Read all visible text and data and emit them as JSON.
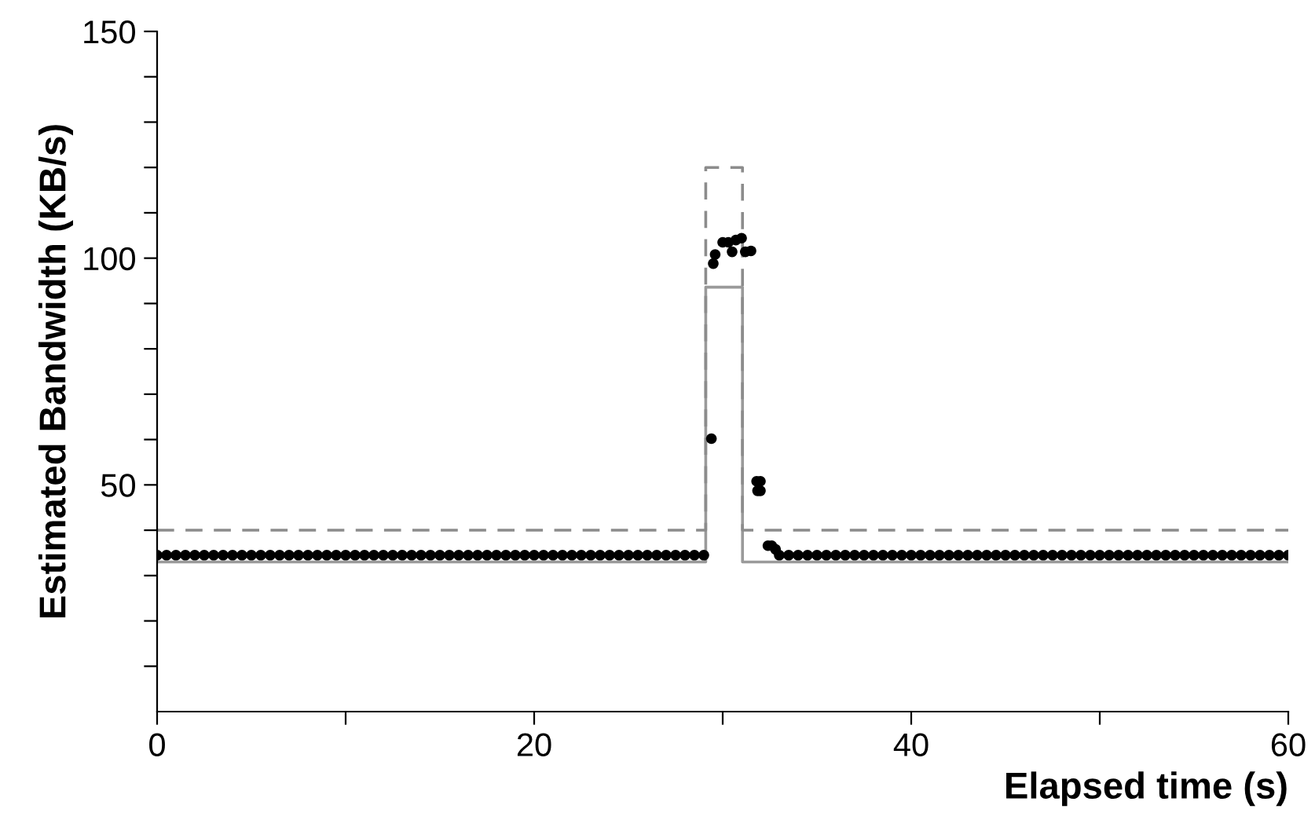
{
  "chart_data": {
    "type": "scatter",
    "xlabel": "Elapsed time (s)",
    "ylabel": "Estimated Bandwidth (KB/s)",
    "xlim": [
      0,
      60
    ],
    "ylim": [
      0,
      150
    ],
    "xticks": [
      0,
      {
        "value": 10,
        "label": null
      },
      20,
      {
        "value": 30,
        "label": null
      },
      40,
      {
        "value": 50,
        "label": null
      },
      60
    ],
    "yticks": [
      {
        "value": 10,
        "label": null
      },
      {
        "value": 20,
        "label": null
      },
      {
        "value": 30,
        "label": null
      },
      {
        "value": 40,
        "label": null
      },
      50,
      {
        "value": 60,
        "label": null
      },
      {
        "value": 70,
        "label": null
      },
      {
        "value": 80,
        "label": null
      },
      {
        "value": 90,
        "label": null
      },
      100,
      {
        "value": 110,
        "label": null
      },
      {
        "value": 120,
        "label": null
      },
      {
        "value": 130,
        "label": null
      },
      {
        "value": 140,
        "label": null
      },
      150
    ],
    "grid": false,
    "legend": false,
    "series": [
      {
        "type": "line",
        "line_style": "solid",
        "color": "#9a9a9a",
        "x": [
          0,
          29.1,
          29.1,
          31.05,
          31.05,
          60
        ],
        "values": [
          33,
          33,
          93.6,
          93.6,
          33,
          33
        ]
      },
      {
        "type": "line",
        "line_style": "dashed",
        "color": "#8c8c8c",
        "x": [
          0,
          29.1,
          29.1,
          31.05,
          31.05,
          60
        ],
        "values": [
          40,
          40,
          120,
          120,
          40,
          40
        ]
      },
      {
        "marker": "circle",
        "color": "#000000",
        "x": [
          0,
          0.5,
          1,
          1.5,
          2,
          2.5,
          3,
          3.5,
          4,
          4.5,
          5,
          5.5,
          6,
          6.5,
          7,
          7.5,
          8,
          8.5,
          9,
          9.5,
          10,
          10.5,
          11,
          11.5,
          12,
          12.5,
          13,
          13.5,
          14,
          14.5,
          15,
          15.5,
          16,
          16.5,
          17,
          17.5,
          18,
          18.5,
          19,
          19.5,
          20,
          20.5,
          21,
          21.5,
          22,
          22.5,
          23,
          23.5,
          24,
          24.5,
          25,
          25.5,
          26,
          26.5,
          27,
          27.5,
          28,
          28.5,
          29,
          29.4,
          29.5,
          29.6,
          30.0,
          30.3,
          30.5,
          30.7,
          31.0,
          31.2,
          31.5,
          31.8,
          31.85,
          32.0,
          32.0,
          32.4,
          32.6,
          32.8,
          33,
          33.5,
          34,
          34.5,
          35,
          35.5,
          36,
          36.5,
          37,
          37.5,
          38,
          38.5,
          39,
          39.5,
          40,
          40.5,
          41,
          41.5,
          42,
          42.5,
          43,
          43.5,
          44,
          44.5,
          45,
          45.5,
          46,
          46.5,
          47,
          47.5,
          48,
          48.5,
          49,
          49.5,
          50,
          50.5,
          51,
          51.5,
          52,
          52.5,
          53,
          53.5,
          54,
          54.5,
          55,
          55.5,
          56,
          56.5,
          57,
          57.5,
          58,
          58.5,
          59,
          59.5,
          60
        ],
        "values": [
          34.5,
          34.5,
          34.5,
          34.5,
          34.5,
          34.5,
          34.5,
          34.5,
          34.5,
          34.5,
          34.5,
          34.5,
          34.5,
          34.5,
          34.5,
          34.5,
          34.5,
          34.5,
          34.5,
          34.5,
          34.5,
          34.5,
          34.5,
          34.5,
          34.5,
          34.5,
          34.5,
          34.5,
          34.5,
          34.5,
          34.5,
          34.5,
          34.5,
          34.5,
          34.5,
          34.5,
          34.5,
          34.5,
          34.5,
          34.5,
          34.5,
          34.5,
          34.5,
          34.5,
          34.5,
          34.5,
          34.5,
          34.5,
          34.5,
          34.5,
          34.5,
          34.5,
          34.5,
          34.5,
          34.5,
          34.5,
          34.5,
          34.5,
          34.5,
          60.2,
          98.8,
          100.8,
          103.5,
          103.5,
          101.4,
          104,
          104.4,
          101.4,
          101.6,
          50.8,
          48.7,
          50.8,
          48.7,
          36.6,
          36.6,
          35.8,
          34.5,
          34.5,
          34.5,
          34.5,
          34.5,
          34.5,
          34.5,
          34.5,
          34.5,
          34.5,
          34.5,
          34.5,
          34.5,
          34.5,
          34.5,
          34.5,
          34.5,
          34.5,
          34.5,
          34.5,
          34.5,
          34.5,
          34.5,
          34.5,
          34.5,
          34.5,
          34.5,
          34.5,
          34.5,
          34.5,
          34.5,
          34.5,
          34.5,
          34.5,
          34.5,
          34.5,
          34.5,
          34.5,
          34.5,
          34.5,
          34.5,
          34.5,
          34.5,
          34.5,
          34.5,
          34.5,
          34.5,
          34.5,
          34.5,
          34.5,
          34.5,
          34.5,
          34.5,
          34.5,
          34.5
        ]
      }
    ]
  }
}
